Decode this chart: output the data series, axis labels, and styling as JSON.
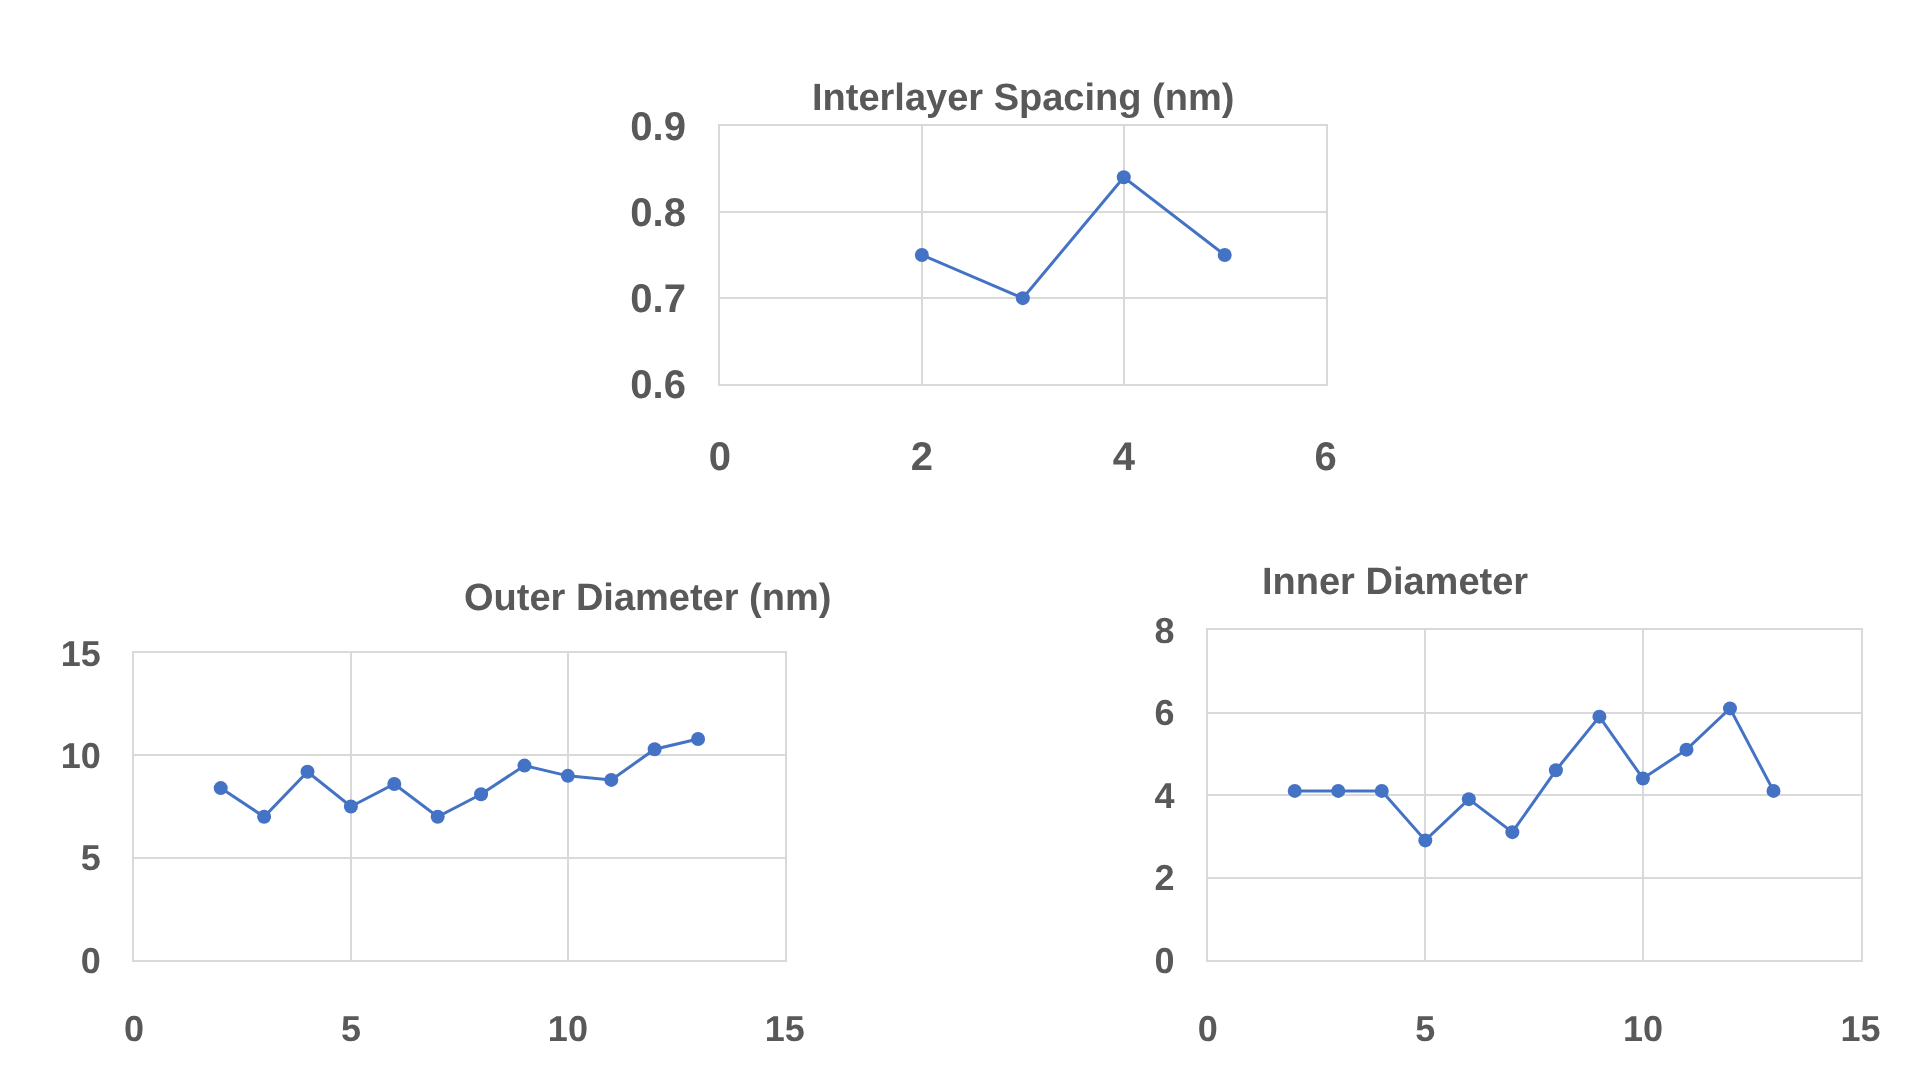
{
  "chart_data": [
    {
      "type": "line",
      "title": "Interlayer Spacing (nm)",
      "x": [
        2,
        3,
        4,
        5
      ],
      "values": [
        0.75,
        0.7,
        0.84,
        0.75
      ],
      "color": "#4472c4",
      "marker": "circle",
      "grid": true,
      "legend": false,
      "xlim": [
        0,
        6
      ],
      "xticks": [
        0,
        2,
        4,
        6
      ],
      "ylim": [
        0.6,
        0.9
      ],
      "yticks": [
        0.6,
        0.7,
        0.8,
        0.9
      ]
    },
    {
      "type": "line",
      "title": "Outer Diameter (nm)",
      "x": [
        2,
        3,
        4,
        5,
        6,
        7,
        8,
        9,
        10,
        11,
        12,
        13
      ],
      "values": [
        8.4,
        7.0,
        9.2,
        7.5,
        8.6,
        7.0,
        8.1,
        9.5,
        9.0,
        8.8,
        10.3,
        10.8
      ],
      "color": "#4472c4",
      "marker": "circle",
      "grid": true,
      "legend": false,
      "xlim": [
        0,
        15
      ],
      "xticks": [
        0,
        5,
        10,
        15
      ],
      "ylim": [
        0,
        15
      ],
      "yticks": [
        0,
        5,
        10,
        15
      ]
    },
    {
      "type": "line",
      "title": "Inner Diameter",
      "x": [
        2,
        3,
        4,
        5,
        6,
        7,
        8,
        9,
        10,
        11,
        12,
        13
      ],
      "values": [
        4.1,
        4.1,
        4.1,
        2.9,
        3.9,
        3.1,
        4.6,
        5.9,
        4.4,
        5.1,
        6.1,
        4.1
      ],
      "color": "#4472c4",
      "marker": "circle",
      "grid": true,
      "legend": false,
      "xlim": [
        0,
        15
      ],
      "xticks": [
        0,
        5,
        10,
        15
      ],
      "ylim": [
        0,
        8
      ],
      "yticks": [
        0,
        2,
        4,
        6,
        8
      ]
    }
  ]
}
